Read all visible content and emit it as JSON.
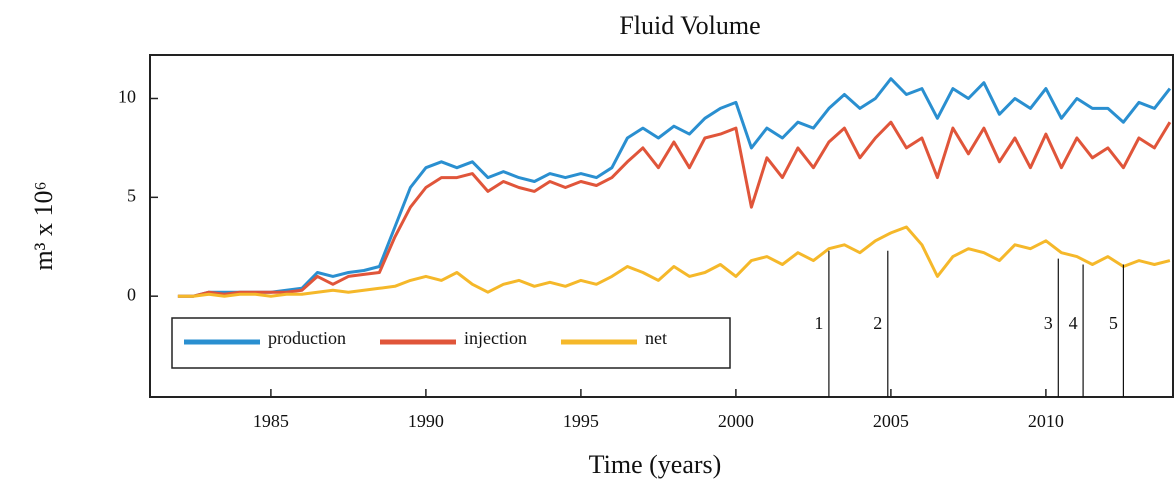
{
  "chart_data": {
    "type": "line",
    "title": "Fluid Volume",
    "xlabel": "Time (years)",
    "ylabel": "m³ x 10⁶",
    "x": [
      1982,
      1982.5,
      1983,
      1983.5,
      1984,
      1984.5,
      1985,
      1985.5,
      1986,
      1986.5,
      1987,
      1987.5,
      1988,
      1988.5,
      1989,
      1989.5,
      1990,
      1990.5,
      1991,
      1991.5,
      1992,
      1992.5,
      1993,
      1993.5,
      1994,
      1994.5,
      1995,
      1995.5,
      1996,
      1996.5,
      1997,
      1997.5,
      1998,
      1998.5,
      1999,
      1999.5,
      2000,
      2000.5,
      2001,
      2001.5,
      2002,
      2002.5,
      2003,
      2003.5,
      2004,
      2004.5,
      2005,
      2005.5,
      2006,
      2006.5,
      2007,
      2007.5,
      2008,
      2008.5,
      2009,
      2009.5,
      2010,
      2010.5,
      2011,
      2011.5,
      2012,
      2012.5,
      2013,
      2013.5,
      2014
    ],
    "series": [
      {
        "name": "production",
        "color": "#2a8fd0",
        "values": [
          0,
          0,
          0.2,
          0.2,
          0.2,
          0.2,
          0.2,
          0.3,
          0.4,
          1.2,
          1.0,
          1.2,
          1.3,
          1.5,
          3.5,
          5.5,
          6.5,
          6.8,
          6.5,
          6.8,
          6.0,
          6.3,
          6.0,
          5.8,
          6.2,
          6.0,
          6.2,
          6.0,
          6.5,
          8.0,
          8.5,
          8.0,
          8.6,
          8.2,
          9.0,
          9.5,
          9.8,
          7.5,
          8.5,
          8.0,
          8.8,
          8.5,
          9.5,
          10.2,
          9.5,
          10.0,
          11.0,
          10.2,
          10.5,
          9.0,
          10.5,
          10.0,
          10.8,
          9.2,
          10.0,
          9.5,
          10.5,
          9.0,
          10.0,
          9.5,
          9.5,
          8.8,
          9.8,
          9.5,
          10.5
        ]
      },
      {
        "name": "injection",
        "color": "#e0553a",
        "values": [
          0,
          0,
          0.2,
          0.1,
          0.2,
          0.2,
          0.2,
          0.2,
          0.3,
          1.0,
          0.6,
          1.0,
          1.1,
          1.2,
          3.0,
          4.5,
          5.5,
          6.0,
          6.0,
          6.2,
          5.3,
          5.8,
          5.5,
          5.3,
          5.8,
          5.5,
          5.8,
          5.6,
          6.0,
          6.8,
          7.5,
          6.5,
          7.8,
          6.5,
          8.0,
          8.2,
          8.5,
          4.5,
          7.0,
          6.0,
          7.5,
          6.5,
          7.8,
          8.5,
          7.0,
          8.0,
          8.8,
          7.5,
          8.0,
          6.0,
          8.5,
          7.2,
          8.5,
          6.8,
          8.0,
          6.5,
          8.2,
          6.5,
          8.0,
          7.0,
          7.5,
          6.5,
          8.0,
          7.5,
          8.8
        ]
      },
      {
        "name": "net",
        "color": "#f5b82a",
        "values": [
          0,
          0,
          0.1,
          0,
          0.1,
          0.1,
          0,
          0.1,
          0.1,
          0.2,
          0.3,
          0.2,
          0.3,
          0.4,
          0.5,
          0.8,
          1.0,
          0.8,
          1.2,
          0.6,
          0.2,
          0.6,
          0.8,
          0.5,
          0.7,
          0.5,
          0.8,
          0.6,
          1.0,
          1.5,
          1.2,
          0.8,
          1.5,
          1.0,
          1.2,
          1.6,
          1.0,
          1.8,
          2.0,
          1.6,
          2.2,
          1.8,
          2.4,
          2.6,
          2.2,
          2.8,
          3.2,
          3.5,
          2.6,
          1.0,
          2.0,
          2.4,
          2.2,
          1.8,
          2.6,
          2.4,
          2.8,
          2.2,
          2.0,
          1.6,
          2.0,
          1.5,
          1.8,
          1.6,
          1.8
        ]
      }
    ],
    "xlim": [
      1981.1,
      2014.1
    ],
    "ylim": [
      -5.1,
      12.2
    ],
    "xticks": [
      1985,
      1990,
      1995,
      2000,
      2005,
      2010
    ],
    "yticks": [
      0,
      5,
      10
    ],
    "annotations": [
      {
        "label": "1",
        "x": 2003.0,
        "y": 2.3
      },
      {
        "label": "2",
        "x": 2004.9,
        "y": 2.3
      },
      {
        "label": "3",
        "x": 2010.4,
        "y": 1.9
      },
      {
        "label": "4",
        "x": 2011.2,
        "y": 1.6
      },
      {
        "label": "5",
        "x": 2012.5,
        "y": 1.6
      }
    ],
    "legend": "lower left"
  }
}
